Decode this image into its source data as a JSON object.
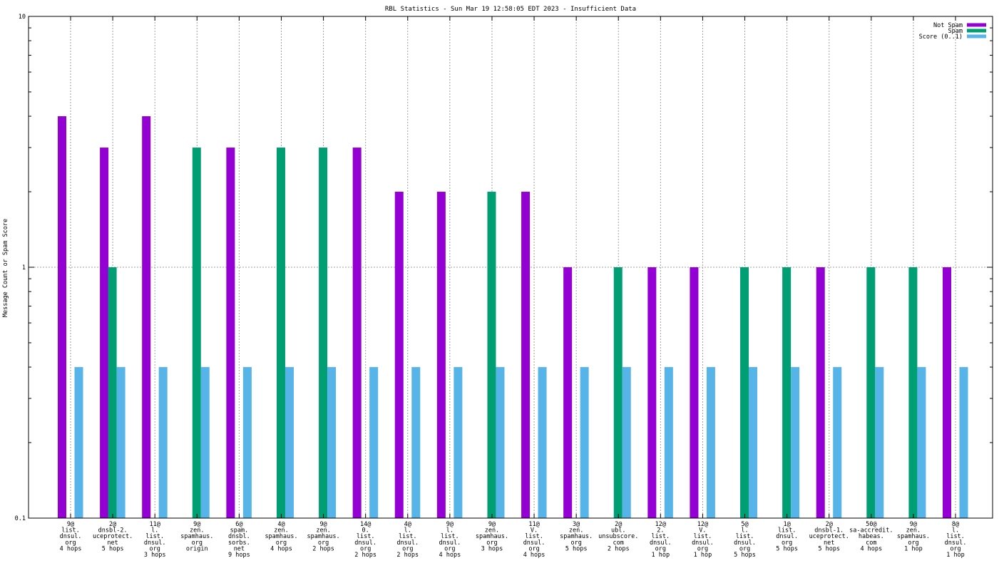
{
  "chart_data": {
    "type": "bar",
    "title": "RBL Statistics - Sun Mar 19 12:58:05 EDT 2023 - Insufficient Data",
    "ylabel": "Message Count or Spam Score",
    "xlabel": "",
    "yscale": "log",
    "ylim": [
      0.1,
      10
    ],
    "yticks": [
      {
        "value": 0.1,
        "label": "0.1"
      },
      {
        "value": 1,
        "label": "1"
      },
      {
        "value": 10,
        "label": "10"
      }
    ],
    "grid": true,
    "legend_position": "top-right",
    "categories": [
      [
        "9@",
        "list.",
        "dnsul.",
        "org",
        "4 hops"
      ],
      [
        "2@",
        "dnsbl-2.",
        "uceprotect.",
        "net",
        "5 hops"
      ],
      [
        "11@",
        "l.",
        "list.",
        "dnsul.",
        "org",
        "3 hops"
      ],
      [
        "9@",
        "zen.",
        "spamhaus.",
        "org",
        "origin"
      ],
      [
        "6@",
        "spam.",
        "dnsbl.",
        "sorbs.",
        "net",
        "9 hops"
      ],
      [
        "4@",
        "zen.",
        "spamhaus.",
        "org",
        "4 hops"
      ],
      [
        "9@",
        "zen.",
        "spamhaus.",
        "org",
        "2 hops"
      ],
      [
        "14@",
        "0.",
        "list.",
        "dnsul.",
        "org",
        "2 hops"
      ],
      [
        "4@",
        "l.",
        "list.",
        "dnsul.",
        "org",
        "2 hops"
      ],
      [
        "9@",
        "l.",
        "list.",
        "dnsul.",
        "org",
        "4 hops"
      ],
      [
        "9@",
        "zen.",
        "spamhaus.",
        "org",
        "3 hops"
      ],
      [
        "11@",
        "V.",
        "list.",
        "dnsul.",
        "org",
        "4 hops"
      ],
      [
        "3@",
        "zen.",
        "spamhaus.",
        "org",
        "5 hops"
      ],
      [
        "2@",
        "ubl.",
        "unsubscore.",
        "com",
        "2 hops"
      ],
      [
        "12@",
        "2.",
        "list.",
        "dnsul.",
        "org",
        "1 hop"
      ],
      [
        "12@",
        "V.",
        "list.",
        "dnsul.",
        "org",
        "1 hop"
      ],
      [
        "5@",
        "l.",
        "list.",
        "dnsul.",
        "org",
        "5 hops"
      ],
      [
        "1@",
        "list.",
        "dnsul.",
        "org",
        "5 hops"
      ],
      [
        "2@",
        "dnsbl-1.",
        "uceprotect.",
        "net",
        "5 hops"
      ],
      [
        "50@",
        "sa-accredit.",
        "habeas.",
        "com",
        "4 hops"
      ],
      [
        "9@",
        "zen.",
        "spamhaus.",
        "org",
        "1 hop"
      ],
      [
        "8@",
        "l.",
        "list.",
        "dnsul.",
        "org",
        "1 hop"
      ]
    ],
    "series": [
      {
        "name": "Not Spam",
        "color": "#9400d3",
        "values": [
          4,
          3,
          4,
          null,
          3,
          null,
          null,
          3,
          2,
          2,
          null,
          2,
          1,
          null,
          1,
          1,
          null,
          null,
          1,
          null,
          null,
          1
        ]
      },
      {
        "name": "Spam",
        "color": "#009e73",
        "values": [
          null,
          1,
          null,
          3,
          null,
          3,
          3,
          null,
          null,
          null,
          2,
          null,
          null,
          1,
          null,
          null,
          1,
          1,
          null,
          1,
          1,
          null
        ]
      },
      {
        "name": "Score (0..1)",
        "color": "#56b4e9",
        "values": [
          0.4,
          0.4,
          0.4,
          0.4,
          0.4,
          0.4,
          0.4,
          0.4,
          0.4,
          0.4,
          0.4,
          0.4,
          0.4,
          0.4,
          0.4,
          0.4,
          0.4,
          0.4,
          0.4,
          0.4,
          0.4,
          0.4
        ]
      }
    ]
  }
}
